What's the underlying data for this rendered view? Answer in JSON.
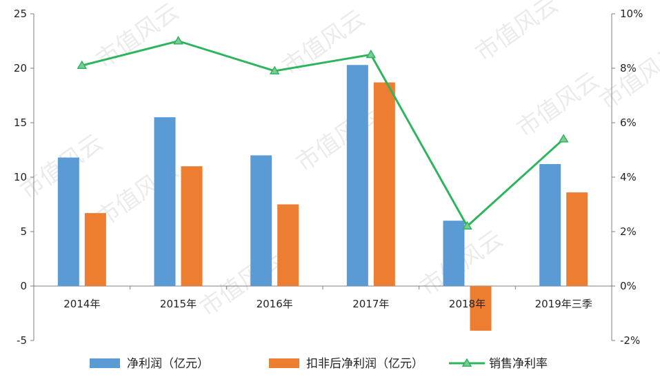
{
  "chart_data": {
    "type": "bar",
    "categories": [
      "2014年",
      "2015年",
      "2016年",
      "2017年",
      "2018年",
      "2019年三季"
    ],
    "series": [
      {
        "name": "净利润（亿元）",
        "type": "bar",
        "axis": "left",
        "color": "#5b9bd5",
        "values": [
          11.8,
          15.5,
          12.0,
          20.3,
          6.0,
          11.2
        ]
      },
      {
        "name": "扣非后净利润（亿元）",
        "type": "bar",
        "axis": "left",
        "color": "#ed7d31",
        "values": [
          6.7,
          11.0,
          7.5,
          18.7,
          -4.1,
          8.6
        ]
      },
      {
        "name": "销售净利率",
        "type": "line",
        "axis": "right",
        "color": "#2db55d",
        "values": [
          8.1,
          9.0,
          7.9,
          8.5,
          2.2,
          5.4
        ]
      }
    ],
    "left_axis": {
      "min": -5,
      "max": 25,
      "ticks": [
        -5,
        0,
        5,
        10,
        15,
        20,
        25
      ]
    },
    "right_axis": {
      "min": -2,
      "max": 10,
      "ticks": [
        "-2%",
        "0%",
        "2%",
        "4%",
        "6%",
        "8%",
        "10%"
      ]
    },
    "legend_position": "bottom",
    "grid": false,
    "watermark": "市值风云"
  }
}
